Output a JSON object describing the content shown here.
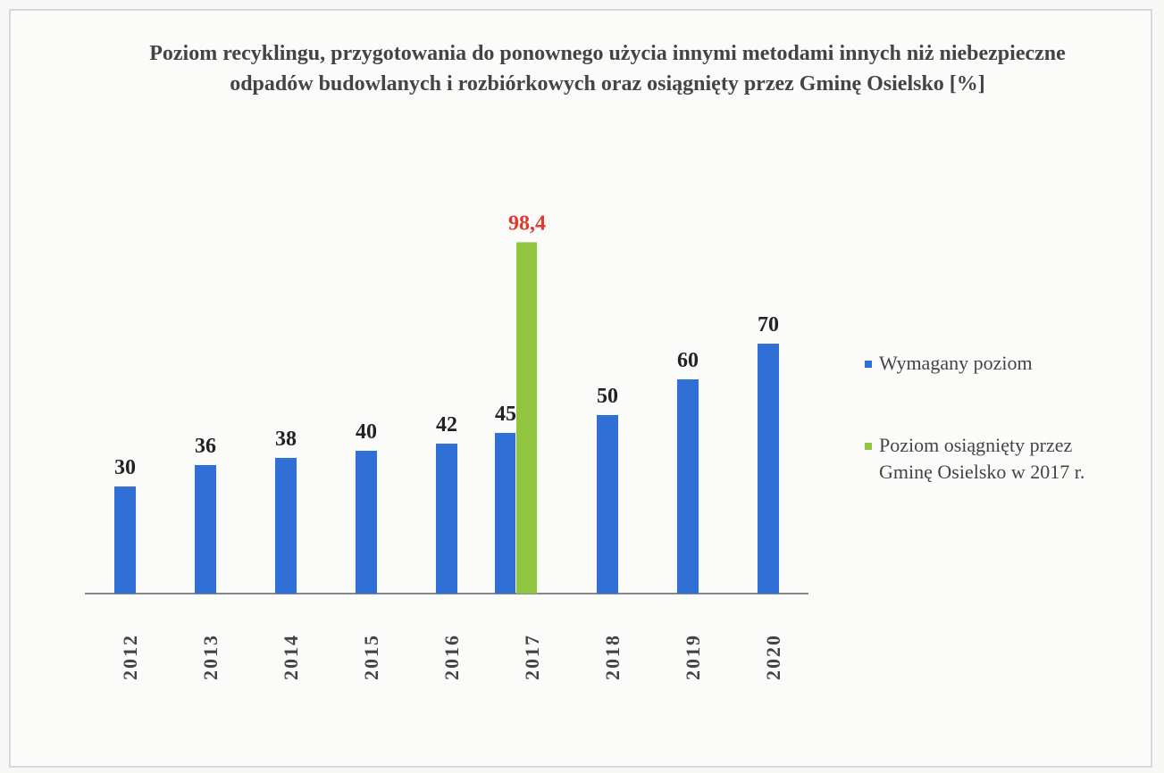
{
  "chart_data": {
    "type": "bar",
    "title": "Poziom recyklingu, przygotowania do ponownego użycia innymi metodami innych niż niebezpieczne odpadów budowlanych i rozbiórkowych oraz osiągnięty przez Gminę Osielsko [%]",
    "categories": [
      "2012",
      "2013",
      "2014",
      "2015",
      "2016",
      "2017",
      "2018",
      "2019",
      "2020"
    ],
    "series": [
      {
        "name": "Wymagany poziom",
        "color": "#2f6fd6",
        "label_color": "#222222",
        "values": [
          30,
          36,
          38,
          40,
          42,
          45,
          50,
          60,
          70
        ]
      },
      {
        "name": "Poziom osiągnięty przez Gminę Osielsko w 2017 r.",
        "color": "#8fc53f",
        "label_color": "#e03a2f",
        "values": [
          null,
          null,
          null,
          null,
          null,
          98.4,
          null,
          null,
          null
        ],
        "value_labels": [
          null,
          null,
          null,
          null,
          null,
          "98,4",
          null,
          null,
          null
        ]
      }
    ],
    "ylim": [
      0,
      100
    ],
    "legend": "right"
  }
}
